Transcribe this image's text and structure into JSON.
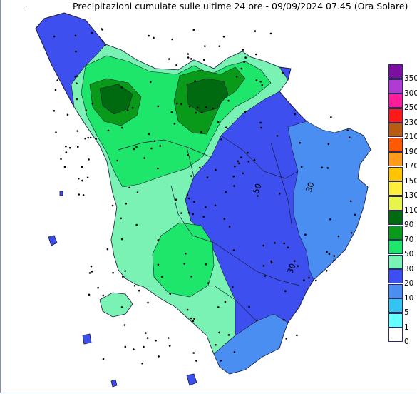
{
  "header": {
    "dash": "-",
    "title": "Precipitazioni cumulate sulle ultime 24 ore - 09/09/2024 07.45 (Ora Solare)"
  },
  "legend": {
    "classes": [
      {
        "label": "350",
        "color": "#7a0fa0"
      },
      {
        "label": "300",
        "color": "#b23ad4"
      },
      {
        "label": "250",
        "color": "#ff1d9a"
      },
      {
        "label": "230",
        "color": "#ff1a1a"
      },
      {
        "label": "210",
        "color": "#b85c12"
      },
      {
        "label": "190",
        "color": "#ff5a00"
      },
      {
        "label": "170",
        "color": "#ff9a1a"
      },
      {
        "label": "150",
        "color": "#ffc400"
      },
      {
        "label": "130",
        "color": "#ffef3a"
      },
      {
        "label": "110",
        "color": "#e8f44c"
      },
      {
        "label": "90",
        "color": "#006a10"
      },
      {
        "label": "70",
        "color": "#0a9a1a"
      },
      {
        "label": "50",
        "color": "#1ee66a"
      },
      {
        "label": "30",
        "color": "#7af2b4"
      },
      {
        "label": "20",
        "color": "#3c4ff0"
      },
      {
        "label": "10",
        "color": "#4a8ef2"
      },
      {
        "label": "5",
        "color": "#34c4f2"
      },
      {
        "label": "1",
        "color": "#66ffff"
      },
      {
        "label": "0",
        "color": "#ffffff"
      }
    ]
  },
  "map": {
    "contour_labels": [
      "50",
      "30",
      "30"
    ],
    "colors": {
      "c5": "#3e4ff0",
      "c10": "#4a8ef2",
      "c20": "#4a8ef2",
      "c30": "#7af2b4",
      "c50": "#1ee66a",
      "c70": "#0a9a1a",
      "c90": "#006a10"
    }
  }
}
